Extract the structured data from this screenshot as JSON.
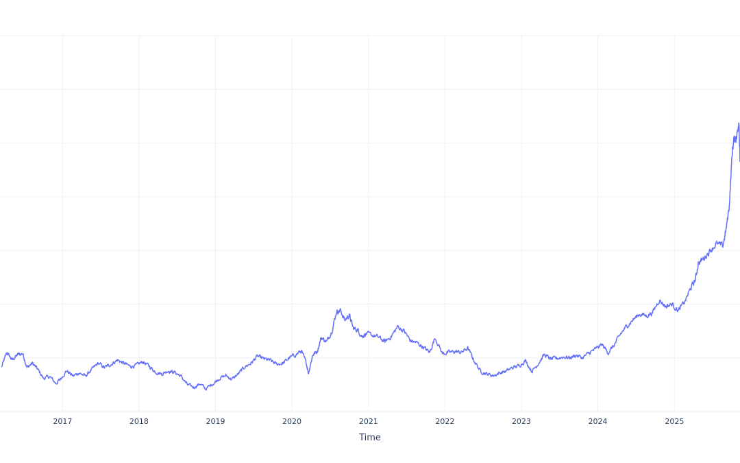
{
  "chart_data": {
    "type": "line",
    "xlabel": "Time",
    "ylabel": "",
    "grid": true,
    "x_ticks": [
      "2017",
      "2018",
      "2019",
      "2020",
      "2021",
      "2022",
      "2023",
      "2024",
      "2025"
    ],
    "y_gridlines": 8,
    "color": "#636efa",
    "ylim": [
      0,
      7
    ],
    "series": [
      {
        "x": [
          "2016-03-15",
          "2016-04-10",
          "2016-05-05",
          "2016-06-01",
          "2016-06-25",
          "2016-07-15",
          "2016-08-10",
          "2016-09-05",
          "2016-10-01",
          "2016-11-01",
          "2016-12-01",
          "2016-12-20",
          "2017-01-20",
          "2017-02-20",
          "2017-03-20",
          "2017-04-20",
          "2017-05-20",
          "2017-06-20",
          "2017-07-20",
          "2017-08-20",
          "2017-09-20",
          "2017-10-20",
          "2017-11-20",
          "2017-12-20",
          "2018-01-20",
          "2018-02-20",
          "2018-03-20",
          "2018-04-20",
          "2018-05-20",
          "2018-06-20",
          "2018-07-20",
          "2018-08-20",
          "2018-09-20",
          "2018-10-20",
          "2018-11-15",
          "2018-12-20",
          "2019-01-20",
          "2019-02-20",
          "2019-03-20",
          "2019-04-20",
          "2019-05-20",
          "2019-06-20",
          "2019-07-20",
          "2019-08-20",
          "2019-09-20",
          "2019-10-20",
          "2019-11-20",
          "2019-12-20",
          "2020-01-20",
          "2020-02-15",
          "2020-03-10",
          "2020-03-20",
          "2020-04-10",
          "2020-05-01",
          "2020-05-20",
          "2020-06-15",
          "2020-07-10",
          "2020-08-01",
          "2020-08-20",
          "2020-09-10",
          "2020-10-01",
          "2020-10-20",
          "2020-11-10",
          "2020-12-01",
          "2020-12-20",
          "2021-01-20",
          "2021-02-20",
          "2021-03-20",
          "2021-04-20",
          "2021-05-20",
          "2021-06-20",
          "2021-07-20",
          "2021-08-20",
          "2021-09-20",
          "2021-10-20",
          "2021-11-15",
          "2021-12-20",
          "2022-01-20",
          "2022-02-20",
          "2022-03-20",
          "2022-04-20",
          "2022-05-20",
          "2022-06-20",
          "2022-07-20",
          "2022-08-20",
          "2022-09-20",
          "2022-10-20",
          "2022-11-20",
          "2022-12-20",
          "2023-01-20",
          "2023-02-20",
          "2023-03-20",
          "2023-04-20",
          "2023-05-20",
          "2023-06-20",
          "2023-07-20",
          "2023-08-20",
          "2023-09-20",
          "2023-10-20",
          "2023-11-20",
          "2023-12-20",
          "2024-01-20",
          "2024-02-20",
          "2024-03-20",
          "2024-04-20",
          "2024-05-20",
          "2024-06-20",
          "2024-07-20",
          "2024-08-20",
          "2024-09-20",
          "2024-10-20",
          "2024-11-20",
          "2024-12-20",
          "2025-01-20",
          "2025-02-20",
          "2025-03-20",
          "2025-04-10",
          "2025-04-25",
          "2025-05-20",
          "2025-06-20",
          "2025-07-20",
          "2025-08-20",
          "2025-09-05",
          "2025-09-20",
          "2025-10-05",
          "2025-10-15",
          "2025-10-25",
          "2025-11-05",
          "2025-11-10"
        ],
        "y": [
          0.82,
          1.1,
          0.96,
          1.06,
          1.08,
          0.82,
          0.9,
          0.78,
          0.62,
          0.65,
          0.52,
          0.6,
          0.76,
          0.66,
          0.72,
          0.66,
          0.78,
          0.9,
          0.82,
          0.88,
          0.96,
          0.9,
          0.84,
          0.86,
          0.93,
          0.84,
          0.74,
          0.7,
          0.76,
          0.73,
          0.66,
          0.5,
          0.45,
          0.52,
          0.42,
          0.52,
          0.62,
          0.67,
          0.6,
          0.7,
          0.83,
          0.9,
          1.03,
          0.98,
          0.95,
          0.88,
          0.9,
          1.0,
          1.06,
          1.13,
          0.9,
          0.72,
          1.06,
          1.12,
          1.38,
          1.3,
          1.5,
          1.86,
          1.88,
          1.7,
          1.8,
          1.55,
          1.52,
          1.4,
          1.45,
          1.42,
          1.38,
          1.3,
          1.4,
          1.58,
          1.5,
          1.32,
          1.28,
          1.2,
          1.1,
          1.38,
          1.08,
          1.1,
          1.12,
          1.1,
          1.18,
          0.95,
          0.75,
          0.7,
          0.67,
          0.72,
          0.75,
          0.82,
          0.85,
          0.95,
          0.75,
          0.88,
          1.06,
          0.98,
          0.99,
          1.02,
          1.0,
          1.05,
          1.0,
          1.09,
          1.16,
          1.25,
          1.1,
          1.24,
          1.45,
          1.6,
          1.72,
          1.82,
          1.78,
          1.85,
          2.08,
          1.96,
          2.0,
          1.88,
          2.05,
          2.3,
          2.45,
          2.76,
          2.85,
          3.0,
          3.12,
          3.08,
          3.4,
          3.85,
          4.9,
          5.1,
          5.1,
          5.45,
          4.65
        ]
      }
    ]
  }
}
